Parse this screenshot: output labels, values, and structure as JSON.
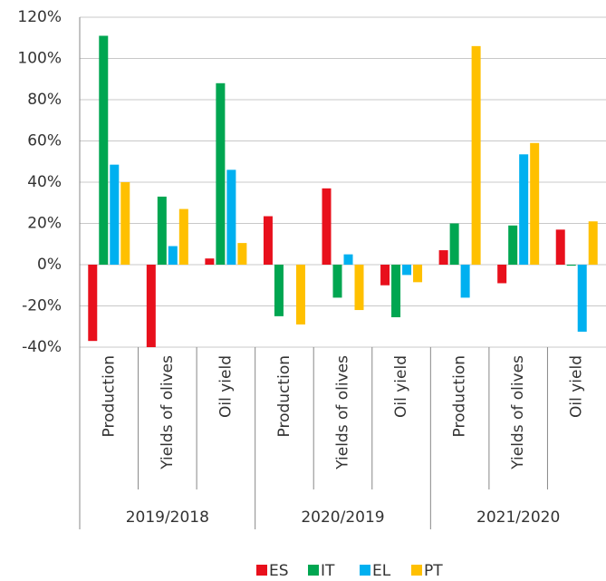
{
  "chart_data": {
    "type": "bar",
    "categories": [
      "Production",
      "Yields of olives",
      "Oil yield",
      "Production",
      "Yields of olives",
      "Oil yield",
      "Production",
      "Yields of olives",
      "Oil yield"
    ],
    "groups": [
      "2019/2018",
      "2020/2019",
      "2021/2020"
    ],
    "series": [
      {
        "name": "ES",
        "color": "#e8101c",
        "values": [
          -37,
          -40,
          3,
          23.5,
          37,
          -10,
          7,
          -9,
          17
        ]
      },
      {
        "name": "IT",
        "color": "#00a651",
        "values": [
          111,
          33,
          88,
          -25,
          -16,
          -25.5,
          20,
          19,
          -0.5
        ]
      },
      {
        "name": "EL",
        "color": "#00b0f0",
        "values": [
          48.5,
          9,
          46,
          0,
          5,
          -5,
          -16,
          53.5,
          -32.5
        ]
      },
      {
        "name": "PT",
        "color": "#ffc000",
        "values": [
          40,
          27,
          10.5,
          -29,
          -22,
          -8.5,
          106,
          59,
          21
        ]
      }
    ],
    "ylim": [
      -40,
      120
    ],
    "yticks": [
      {
        "value": -40,
        "label": "-40%"
      },
      {
        "value": -20,
        "label": "-20%"
      },
      {
        "value": 0,
        "label": "0%"
      },
      {
        "value": 20,
        "label": "20%"
      },
      {
        "value": 40,
        "label": "40%"
      },
      {
        "value": 60,
        "label": "60%"
      },
      {
        "value": 80,
        "label": "80%"
      },
      {
        "value": 100,
        "label": "100%"
      },
      {
        "value": 120,
        "label": "120%"
      }
    ],
    "grid": true,
    "legend": "bottom"
  }
}
